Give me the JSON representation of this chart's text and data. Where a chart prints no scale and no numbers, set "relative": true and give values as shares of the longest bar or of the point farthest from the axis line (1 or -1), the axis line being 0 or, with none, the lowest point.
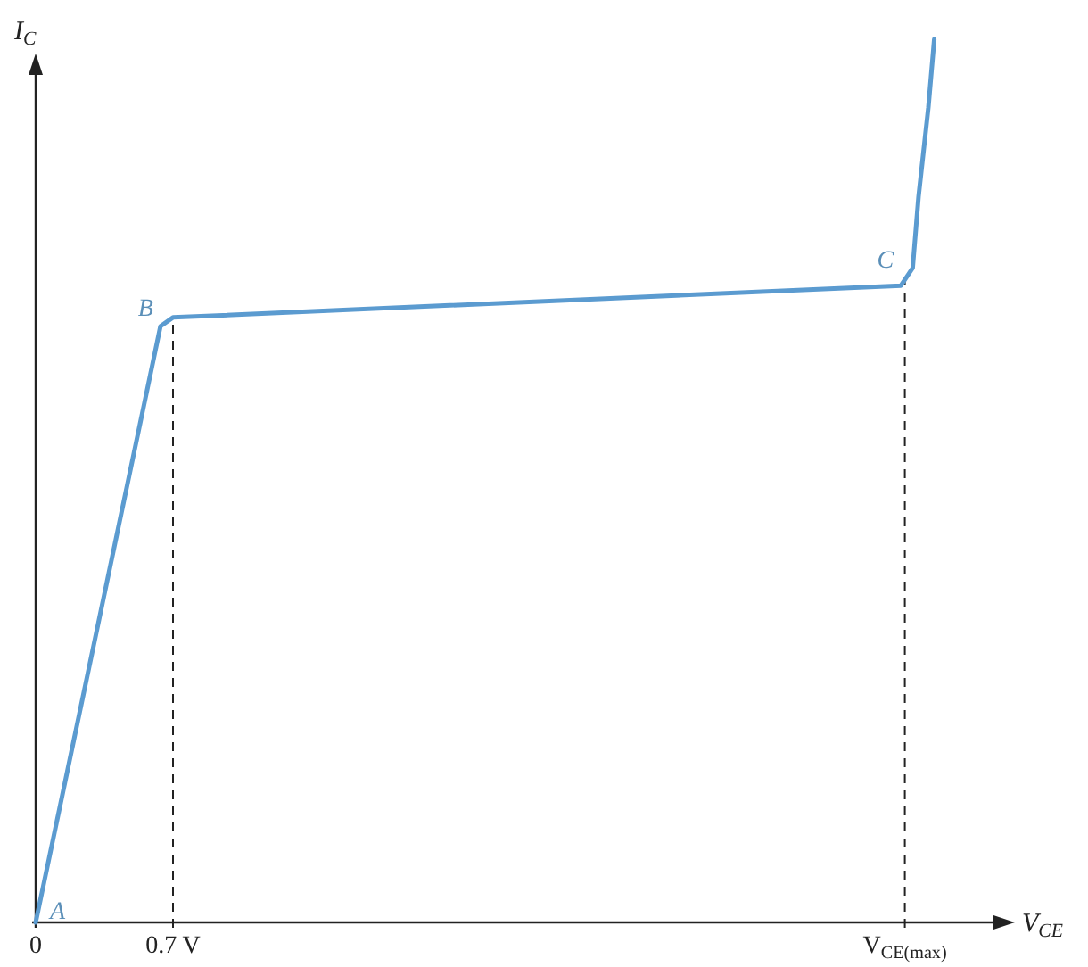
{
  "chart_data": {
    "type": "line",
    "relative": true,
    "xlabel": "V$_{CE}$",
    "ylabel": "I$_{C}$",
    "xlim": [
      0,
      4.9
    ],
    "xticks": [
      {
        "value": 0,
        "label": "0"
      },
      {
        "value": 0.7,
        "label": "0.7 V"
      },
      {
        "value": 4.43,
        "label": "V$_{CE(max)}$"
      }
    ],
    "x": [
      0,
      0.636,
      0.7,
      4.41,
      4.47,
      4.5,
      4.55,
      4.58
    ],
    "series": [
      {
        "color": "#5b9bd0",
        "values": [
          0,
          0.675,
          0.685,
          0.721,
          0.741,
          0.822,
          0.923,
          1
        ]
      }
    ],
    "ref_lines": [
      {
        "axis": "x",
        "value": 0.7,
        "line_style": "dashed",
        "color": "#222222"
      },
      {
        "axis": "x",
        "value": 4.43,
        "line_style": "dashed",
        "color": "#222222"
      }
    ],
    "annotations": [
      {
        "text": "A",
        "x": 0,
        "y": 0
      },
      {
        "text": "B",
        "x": 0.636,
        "y": 0.675
      },
      {
        "text": "C",
        "x": 4.41,
        "y": 0.721
      }
    ],
    "marker": "none",
    "line_style": "solid"
  }
}
